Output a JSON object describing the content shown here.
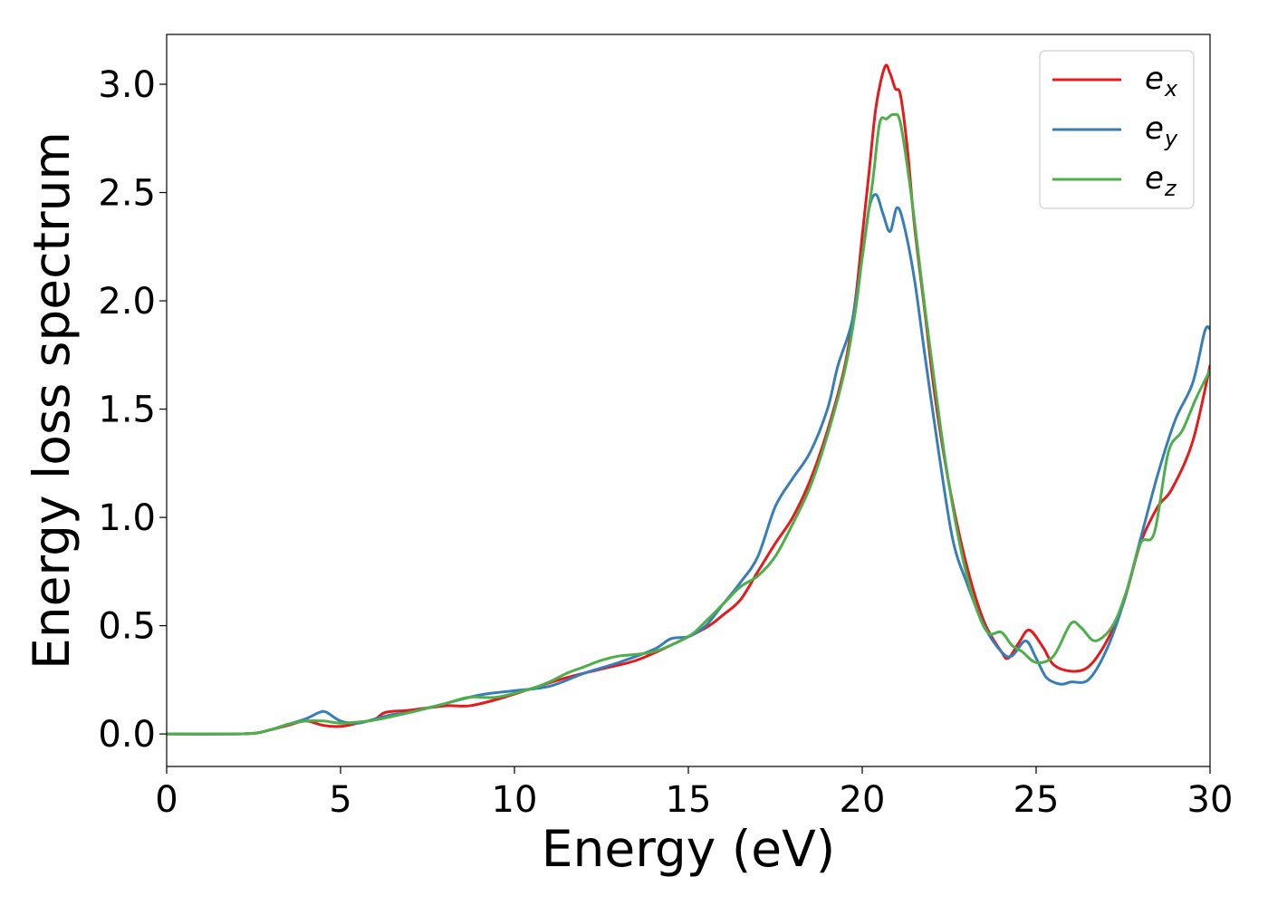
{
  "chart_data": {
    "type": "line",
    "xlabel": "Energy (eV)",
    "ylabel": "Energy loss spectrum",
    "xlim": [
      0,
      30
    ],
    "ylim": [
      -0.15,
      3.23
    ],
    "xticks": [
      0,
      5,
      10,
      15,
      20,
      25,
      30
    ],
    "xtick_labels": [
      "0",
      "5",
      "10",
      "15",
      "20",
      "25",
      "30"
    ],
    "yticks": [
      0.0,
      0.5,
      1.0,
      1.5,
      2.0,
      2.5,
      3.0
    ],
    "ytick_labels": [
      "0.0",
      "0.5",
      "1.0",
      "1.5",
      "2.0",
      "2.5",
      "3.0"
    ],
    "grid": false,
    "legend_position": "top-right",
    "series": [
      {
        "name": "e",
        "name_sub": "x",
        "color": "#e41a1c",
        "points": [
          [
            0,
            0
          ],
          [
            2,
            0
          ],
          [
            2.6,
            0.005
          ],
          [
            3,
            0.02
          ],
          [
            3.5,
            0.04
          ],
          [
            4,
            0.06
          ],
          [
            4.5,
            0.04
          ],
          [
            5,
            0.035
          ],
          [
            5.5,
            0.05
          ],
          [
            6,
            0.07
          ],
          [
            6.3,
            0.1
          ],
          [
            7,
            0.11
          ],
          [
            8,
            0.13
          ],
          [
            8.7,
            0.13
          ],
          [
            9.5,
            0.16
          ],
          [
            10.5,
            0.21
          ],
          [
            11.5,
            0.26
          ],
          [
            12.5,
            0.3
          ],
          [
            13.5,
            0.34
          ],
          [
            14.5,
            0.41
          ],
          [
            15.5,
            0.49
          ],
          [
            16,
            0.55
          ],
          [
            16.5,
            0.62
          ],
          [
            17,
            0.75
          ],
          [
            17.5,
            0.88
          ],
          [
            18,
            1.0
          ],
          [
            18.5,
            1.17
          ],
          [
            19,
            1.4
          ],
          [
            19.5,
            1.7
          ],
          [
            19.8,
            2.0
          ],
          [
            20,
            2.3
          ],
          [
            20.2,
            2.6
          ],
          [
            20.4,
            2.9
          ],
          [
            20.65,
            3.08
          ],
          [
            20.8,
            3.05
          ],
          [
            20.95,
            2.98
          ],
          [
            21.1,
            2.95
          ],
          [
            21.3,
            2.7
          ],
          [
            21.5,
            2.35
          ],
          [
            21.8,
            1.95
          ],
          [
            22.1,
            1.55
          ],
          [
            22.5,
            1.15
          ],
          [
            23,
            0.78
          ],
          [
            23.5,
            0.52
          ],
          [
            24,
            0.38
          ],
          [
            24.2,
            0.35
          ],
          [
            24.5,
            0.42
          ],
          [
            24.8,
            0.48
          ],
          [
            25.2,
            0.4
          ],
          [
            25.5,
            0.32
          ],
          [
            26,
            0.29
          ],
          [
            26.5,
            0.31
          ],
          [
            27,
            0.42
          ],
          [
            27.5,
            0.6
          ],
          [
            28,
            0.88
          ],
          [
            28.5,
            1.05
          ],
          [
            28.9,
            1.13
          ],
          [
            29.5,
            1.35
          ],
          [
            30,
            1.7
          ]
        ]
      },
      {
        "name": "e",
        "name_sub": "y",
        "color": "#377eb8",
        "points": [
          [
            0,
            0
          ],
          [
            2,
            0
          ],
          [
            2.6,
            0.005
          ],
          [
            3,
            0.02
          ],
          [
            3.5,
            0.045
          ],
          [
            4,
            0.07
          ],
          [
            4.4,
            0.1
          ],
          [
            4.6,
            0.1
          ],
          [
            5,
            0.06
          ],
          [
            5.5,
            0.05
          ],
          [
            6,
            0.07
          ],
          [
            6.5,
            0.09
          ],
          [
            7,
            0.1
          ],
          [
            8,
            0.14
          ],
          [
            9,
            0.18
          ],
          [
            10,
            0.2
          ],
          [
            11,
            0.22
          ],
          [
            12,
            0.28
          ],
          [
            13,
            0.33
          ],
          [
            14,
            0.39
          ],
          [
            14.5,
            0.44
          ],
          [
            15,
            0.45
          ],
          [
            15.5,
            0.5
          ],
          [
            16,
            0.6
          ],
          [
            16.5,
            0.7
          ],
          [
            17,
            0.82
          ],
          [
            17.5,
            1.05
          ],
          [
            18,
            1.18
          ],
          [
            18.5,
            1.3
          ],
          [
            19,
            1.5
          ],
          [
            19.3,
            1.7
          ],
          [
            19.7,
            1.9
          ],
          [
            20,
            2.2
          ],
          [
            20.2,
            2.43
          ],
          [
            20.4,
            2.49
          ],
          [
            20.6,
            2.4
          ],
          [
            20.8,
            2.32
          ],
          [
            21,
            2.43
          ],
          [
            21.2,
            2.35
          ],
          [
            21.5,
            2.1
          ],
          [
            21.8,
            1.75
          ],
          [
            22.2,
            1.3
          ],
          [
            22.6,
            0.9
          ],
          [
            23,
            0.7
          ],
          [
            23.5,
            0.5
          ],
          [
            24,
            0.38
          ],
          [
            24.3,
            0.36
          ],
          [
            24.7,
            0.43
          ],
          [
            25,
            0.35
          ],
          [
            25.3,
            0.26
          ],
          [
            25.7,
            0.23
          ],
          [
            26,
            0.24
          ],
          [
            26.5,
            0.25
          ],
          [
            27,
            0.38
          ],
          [
            27.5,
            0.6
          ],
          [
            28,
            0.9
          ],
          [
            28.5,
            1.2
          ],
          [
            29,
            1.45
          ],
          [
            29.5,
            1.62
          ],
          [
            29.85,
            1.86
          ],
          [
            30,
            1.87
          ]
        ]
      },
      {
        "name": "e",
        "name_sub": "z",
        "color": "#4daf4a",
        "points": [
          [
            0,
            0
          ],
          [
            2,
            0
          ],
          [
            2.6,
            0.005
          ],
          [
            3,
            0.02
          ],
          [
            3.5,
            0.045
          ],
          [
            4,
            0.06
          ],
          [
            4.5,
            0.06
          ],
          [
            5,
            0.05
          ],
          [
            5.5,
            0.055
          ],
          [
            6,
            0.065
          ],
          [
            7,
            0.1
          ],
          [
            8,
            0.14
          ],
          [
            8.7,
            0.17
          ],
          [
            9.5,
            0.17
          ],
          [
            10.5,
            0.21
          ],
          [
            11,
            0.24
          ],
          [
            11.5,
            0.28
          ],
          [
            12,
            0.31
          ],
          [
            12.5,
            0.34
          ],
          [
            13,
            0.36
          ],
          [
            14,
            0.38
          ],
          [
            15,
            0.45
          ],
          [
            15.5,
            0.52
          ],
          [
            16,
            0.6
          ],
          [
            16.5,
            0.68
          ],
          [
            17,
            0.73
          ],
          [
            17.5,
            0.82
          ],
          [
            18,
            0.97
          ],
          [
            18.5,
            1.14
          ],
          [
            19,
            1.38
          ],
          [
            19.5,
            1.68
          ],
          [
            19.8,
            1.95
          ],
          [
            20,
            2.2
          ],
          [
            20.3,
            2.55
          ],
          [
            20.5,
            2.82
          ],
          [
            20.7,
            2.84
          ],
          [
            20.9,
            2.86
          ],
          [
            21.1,
            2.82
          ],
          [
            21.4,
            2.5
          ],
          [
            21.7,
            2.1
          ],
          [
            22,
            1.72
          ],
          [
            22.4,
            1.25
          ],
          [
            22.8,
            0.88
          ],
          [
            23.2,
            0.62
          ],
          [
            23.6,
            0.47
          ],
          [
            24,
            0.47
          ],
          [
            24.3,
            0.41
          ],
          [
            24.6,
            0.38
          ],
          [
            25,
            0.33
          ],
          [
            25.5,
            0.36
          ],
          [
            26,
            0.51
          ],
          [
            26.3,
            0.49
          ],
          [
            26.7,
            0.43
          ],
          [
            27.2,
            0.5
          ],
          [
            27.6,
            0.66
          ],
          [
            28,
            0.88
          ],
          [
            28.4,
            0.93
          ],
          [
            28.8,
            1.3
          ],
          [
            29.2,
            1.4
          ],
          [
            29.6,
            1.55
          ],
          [
            30,
            1.68
          ]
        ]
      }
    ]
  }
}
